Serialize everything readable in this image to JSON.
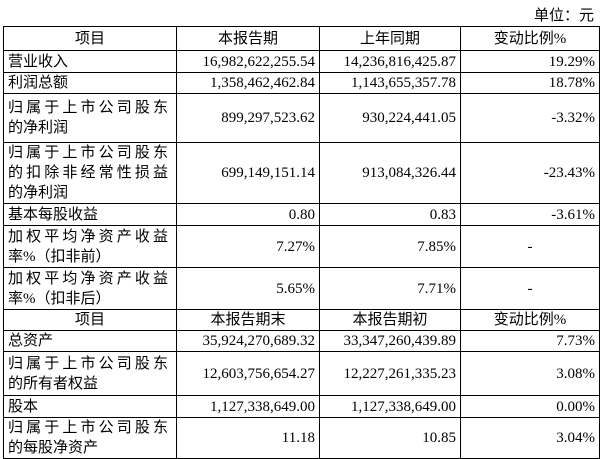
{
  "unit_label": "单位：元",
  "sections": [
    {
      "header": [
        "项目",
        "本报告期",
        "上年同期",
        "变动比例%"
      ],
      "rows": [
        {
          "label": [
            "营业收入"
          ],
          "current": "16,982,622,255.54",
          "previous": "14,236,816,425.87",
          "change": "19.29%",
          "h": 22
        },
        {
          "label": [
            "利润总额"
          ],
          "current": "1,358,462,462.84",
          "previous": "1,143,655,357.78",
          "change": "18.78%",
          "h": 21
        },
        {
          "label": [
            "归属于上市公司股东",
            "的净利润"
          ],
          "current": "899,297,523.62",
          "previous": "930,224,441.05",
          "change": "-3.32%",
          "h": 49
        },
        {
          "label": [
            "归属于上市公司股东",
            "的扣除非经常性损益",
            "的净利润"
          ],
          "current": "699,149,151.14",
          "previous": "913,084,326.44",
          "change": "-23.43%",
          "h": 55
        },
        {
          "label": [
            "基本每股收益"
          ],
          "current": "0.80",
          "previous": "0.83",
          "change": "-3.61%",
          "h": 22
        },
        {
          "label": [
            "加权平均净资产收益",
            "率%（扣非前）"
          ],
          "current": "7.27%",
          "previous": "7.85%",
          "change": "-",
          "h": 42
        },
        {
          "label": [
            "加权平均净资产收益",
            "率%（扣非后）"
          ],
          "current": "5.65%",
          "previous": "7.71%",
          "change": "-",
          "h": 42
        }
      ]
    },
    {
      "header": [
        "项目",
        "本报告期末",
        "本报告期初",
        "变动比例%"
      ],
      "rows": [
        {
          "label": [
            "总资产"
          ],
          "current": "35,924,270,689.32",
          "previous": "33,347,260,439.89",
          "change": "7.73%",
          "h": 21
        },
        {
          "label": [
            "归属于上市公司股东",
            "的所有者权益"
          ],
          "current": "12,603,756,654.27",
          "previous": "12,227,261,335.23",
          "change": "3.08%",
          "h": 44
        },
        {
          "label": [
            "股本"
          ],
          "current": "1,127,338,649.00",
          "previous": "1,127,338,649.00",
          "change": "0.00%",
          "h": 22
        },
        {
          "label": [
            "归属于上市公司股东",
            "的每股净资产"
          ],
          "current": "11.18",
          "previous": "10.85",
          "change": "3.04%",
          "h": 41
        }
      ]
    }
  ]
}
